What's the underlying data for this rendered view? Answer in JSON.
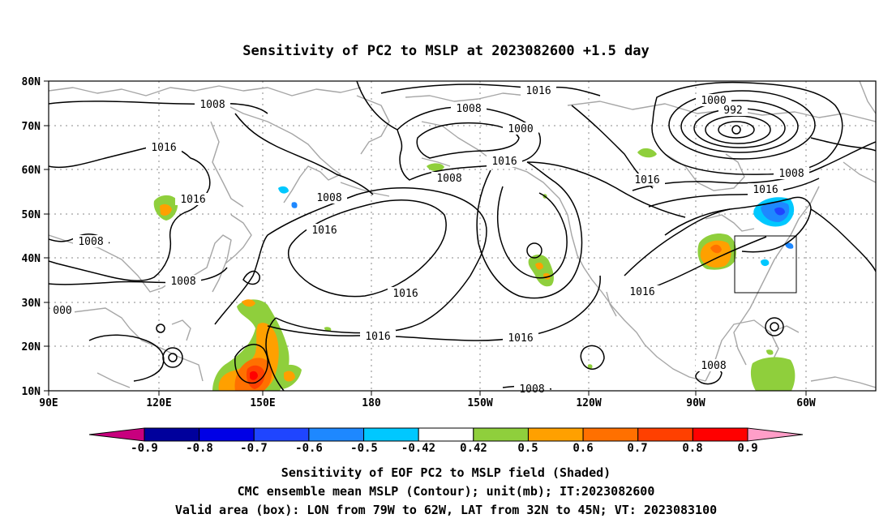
{
  "title": "Sensitivity of PC2 to MSLP at 2023082600 +1.5 day",
  "map": {
    "lat_ticks": [
      "80N",
      "70N",
      "60N",
      "50N",
      "40N",
      "30N",
      "20N",
      "10N"
    ],
    "lon_ticks": [
      "90E",
      "120E",
      "150E",
      "180",
      "150W",
      "120W",
      "90W",
      "60W"
    ],
    "contour_labels": [
      "1008",
      "1016",
      "1016",
      "1008",
      "1008",
      "000",
      "1016",
      "1008",
      "1016",
      "1008",
      "1000",
      "1008",
      "1016",
      "1016",
      "1016",
      "1016",
      "1000",
      "992",
      "1008",
      "1016",
      "1016",
      "1016",
      "1008",
      "1008"
    ],
    "valid_box": {
      "lon_range": [
        "79W",
        "62W"
      ],
      "lat_range": [
        "32N",
        "45N"
      ]
    }
  },
  "colorbar": {
    "labels": [
      "-0.9",
      "-0.8",
      "-0.7",
      "-0.6",
      "-0.5",
      "-0.42",
      "0.42",
      "0.5",
      "0.6",
      "0.7",
      "0.8",
      "0.9"
    ],
    "colors": {
      "below": "#c8007e",
      "segments": [
        "#00009c",
        "#0000e6",
        "#1f45ff",
        "#1e88ff",
        "#00c8ff",
        "#ffffff",
        "#8fcf3c",
        "#ffa000",
        "#ff7000",
        "#ff4000",
        "#ff0000"
      ],
      "above": "#ff9ec8"
    }
  },
  "footer": {
    "line1": "Sensitivity of EOF PC2 to MSLP field (Shaded)",
    "line2": "CMC ensemble mean MSLP (Contour); unit(mb); IT:2023082600",
    "line3": "Valid area (box): LON from 79W to 62W, LAT from 32N to 45N; VT: 2023083100"
  }
}
